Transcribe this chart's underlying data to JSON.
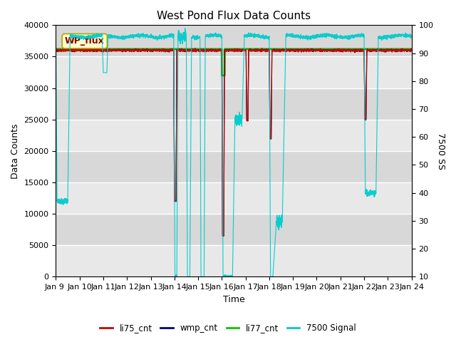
{
  "title": "West Pond Flux Data Counts",
  "xlabel": "Time",
  "ylabel_left": "Data Counts",
  "ylabel_right": "7500 SS",
  "ylim_left": [
    0,
    40000
  ],
  "ylim_right": [
    10,
    100
  ],
  "xlim": [
    0,
    15
  ],
  "xtick_labels": [
    "Jan 9 ",
    "Jan 10",
    "Jan 11",
    "Jan 12",
    "Jan 13",
    "Jan 14",
    "Jan 15",
    "Jan 16",
    "Jan 17",
    "Jan 18",
    "Jan 19",
    "Jan 20",
    "Jan 21",
    "Jan 22",
    "Jan 23",
    "Jan 24"
  ],
  "textbox_label": "WP_flux",
  "bg_color_light": "#e8e8e8",
  "bg_color_dark": "#d0d0d0",
  "grid_color": "#ffffff",
  "legend_entries": [
    "li75_cnt",
    "wmp_cnt",
    "li77_cnt",
    "7500 Signal"
  ],
  "legend_colors": [
    "#cc0000",
    "#000080",
    "#00cc00",
    "#00cccc"
  ],
  "colors": {
    "li75": "#cc0000",
    "wmp": "#000033",
    "li77": "#00bb00",
    "sig7500": "#00cccc"
  },
  "yticks_left": [
    0,
    5000,
    10000,
    15000,
    20000,
    25000,
    30000,
    35000,
    40000
  ],
  "yticks_right": [
    10,
    20,
    30,
    40,
    50,
    60,
    70,
    80,
    90,
    100
  ]
}
